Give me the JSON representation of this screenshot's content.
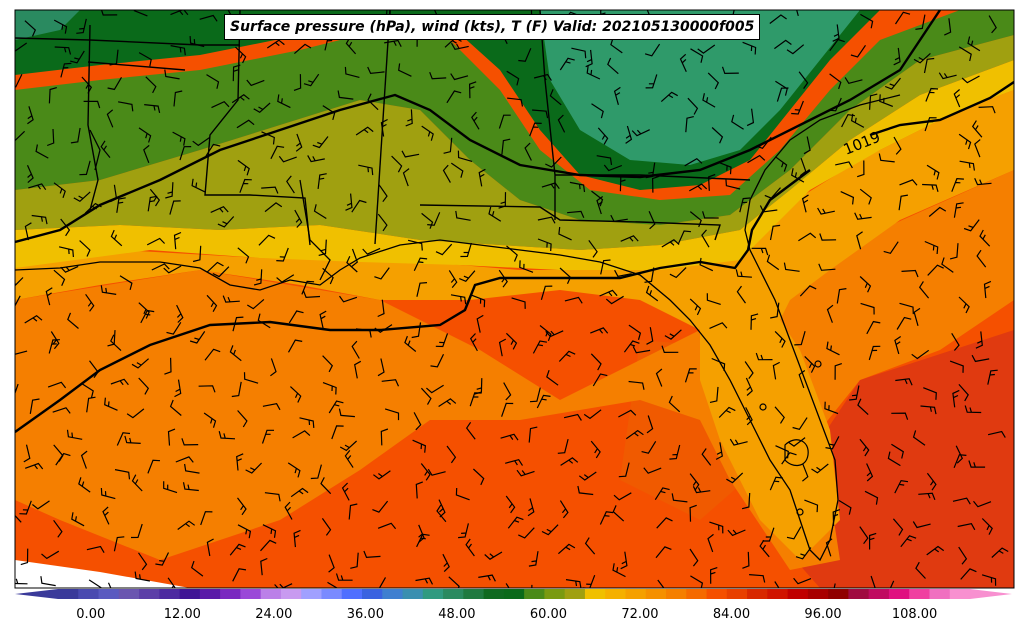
{
  "title": "Surface pressure (hPa), wind (kts), T (F) Valid: 202105130000f005",
  "isobar_label": "1019",
  "colorbar": {
    "ticks": [
      "0.00",
      "12.00",
      "24.00",
      "36.00",
      "48.00",
      "60.00",
      "72.00",
      "84.00",
      "96.00",
      "108.00"
    ],
    "min": -6,
    "max": 120,
    "step": 3,
    "colors": [
      "#3a3a9a",
      "#4a4ab0",
      "#5a5ac0",
      "#6a55b0",
      "#5c3fa8",
      "#4d2aa0",
      "#3f1595",
      "#5a1aa8",
      "#7a28c0",
      "#9a48d8",
      "#bb80e8",
      "#c89af0",
      "#a0a0ff",
      "#7a8aff",
      "#4f6fff",
      "#3a62e0",
      "#3f7fd0",
      "#3a8fb0",
      "#2f9a80",
      "#2a8a60",
      "#1f7a40",
      "#0f6a20",
      "#0a6a1a",
      "#4a8a18",
      "#7a9a10",
      "#a0a010",
      "#f0c000",
      "#f5b000",
      "#f5a000",
      "#f59000",
      "#f57f00",
      "#f56a00",
      "#f55000",
      "#e84000",
      "#d82800",
      "#d01400",
      "#c00000",
      "#a80000",
      "#900000",
      "#a00a40",
      "#c00a60",
      "#e01080",
      "#f040a0",
      "#f070c0",
      "#f890d0"
    ]
  },
  "map_colors": {
    "deep_green": "#0a6a1a",
    "teal_green": "#2f9a6a",
    "mid_green": "#4a8a18",
    "olive": "#a0a010",
    "yellow": "#f0c000",
    "light_orange": "#f5a000",
    "orange": "#f57f00",
    "red_orange": "#f55000",
    "red": "#e03a10"
  }
}
